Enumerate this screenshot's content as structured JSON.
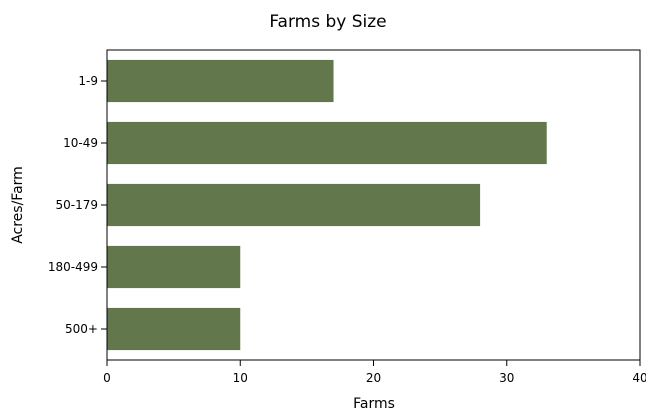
{
  "colors": {
    "bar": "#62784c",
    "background": "#ffffff",
    "axis": "#000000"
  },
  "chart_data": {
    "type": "bar",
    "orientation": "horizontal",
    "title": "Farms by Size",
    "xlabel": "Farms",
    "ylabel": "Acres/Farm",
    "categories": [
      "1-9",
      "10-49",
      "50-179",
      "180-499",
      "500+"
    ],
    "values": [
      17,
      33,
      28,
      10,
      10
    ],
    "xlim": [
      0,
      40
    ],
    "xticks": [
      0,
      10,
      20,
      30,
      40
    ],
    "grid": false,
    "legend": "none"
  }
}
